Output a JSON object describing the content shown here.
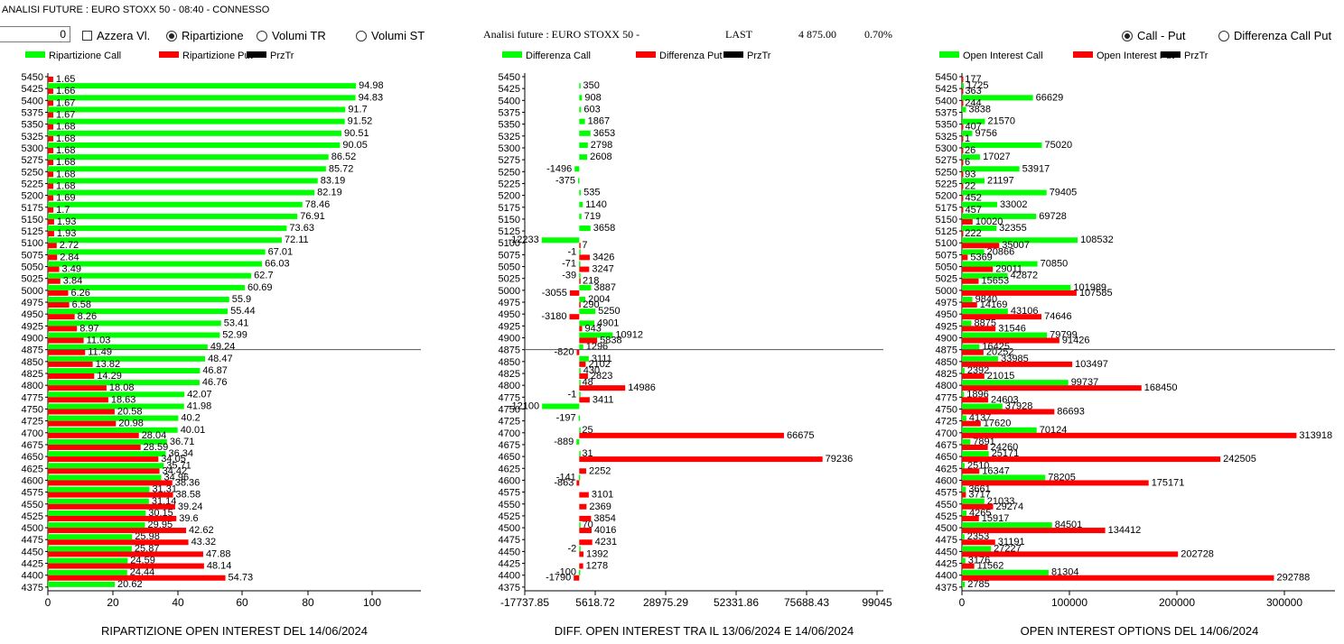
{
  "app_title": "ANALISI FUTURE : EURO STOXX 50 - 08:40 - CONNESSO",
  "controls": {
    "spin_value": "0",
    "azzera": {
      "label": "Azzera Vl.",
      "checked": false
    },
    "view_options": [
      {
        "label": "Ripartizione",
        "selected": true
      },
      {
        "label": "Volumi TR",
        "selected": false
      },
      {
        "label": "Volumi ST",
        "selected": false
      }
    ],
    "mode_options": [
      {
        "label": "Call - Put",
        "selected": true
      },
      {
        "label": "Differenza Call Put",
        "selected": false
      }
    ]
  },
  "header": {
    "title": "Analisi future : EURO STOXX 50 -",
    "last_label": "LAST",
    "last_value": "4 875.00",
    "change": "0.70%"
  },
  "colors": {
    "call": "#00ff00",
    "put": "#ff0000",
    "przTr": "#000000",
    "reference_line": "#555555"
  },
  "chart_data": [
    {
      "type": "bar",
      "orientation": "horizontal",
      "title": "RIPARTIZIONE OPEN INTEREST DEL 14/06/2024",
      "legend": [
        "Ripartizione Call",
        "Ripartizione Put",
        "PrzTr"
      ],
      "legend_placement": "top-left",
      "x_ticks": [
        "0",
        "20",
        "40",
        "60",
        "80",
        "100"
      ],
      "xlim": [
        0,
        115
      ],
      "reference_strike": "4875",
      "strikes": [
        "5450",
        "5425",
        "5400",
        "5375",
        "5350",
        "5325",
        "5300",
        "5275",
        "5250",
        "5225",
        "5200",
        "5175",
        "5150",
        "5125",
        "5100",
        "5075",
        "5050",
        "5025",
        "5000",
        "4975",
        "4950",
        "4925",
        "4900",
        "4875",
        "4850",
        "4825",
        "4800",
        "4775",
        "4750",
        "4725",
        "4700",
        "4675",
        "4650",
        "4625",
        "4600",
        "4575",
        "4550",
        "4525",
        "4500",
        "4475",
        "4450",
        "4425",
        "4400",
        "4375"
      ],
      "series": [
        {
          "name": "Ripartizione Call",
          "values": [
            null,
            94.98,
            94.83,
            91.7,
            91.52,
            90.51,
            90.05,
            86.52,
            85.72,
            83.19,
            82.19,
            78.46,
            76.91,
            73.63,
            72.11,
            67.01,
            66.03,
            62.7,
            60.69,
            55.9,
            55.44,
            53.41,
            52.99,
            49.24,
            48.47,
            46.87,
            46.76,
            42.07,
            41.98,
            40.2,
            40.01,
            36.71,
            36.34,
            35.71,
            34.96,
            31.31,
            31.14,
            30.15,
            29.95,
            25.98,
            25.87,
            24.59,
            24.44,
            20.62
          ]
        },
        {
          "name": "Ripartizione Put",
          "values": [
            1.65,
            1.66,
            1.67,
            1.67,
            1.68,
            1.68,
            1.68,
            1.68,
            1.68,
            1.68,
            1.69,
            1.7,
            1.93,
            1.93,
            2.72,
            2.84,
            3.49,
            3.84,
            6.26,
            6.58,
            8.26,
            8.97,
            11.03,
            11.49,
            13.82,
            14.29,
            18.08,
            18.63,
            20.58,
            20.98,
            28.04,
            28.59,
            34.05,
            34.42,
            38.36,
            38.58,
            39.24,
            39.6,
            42.62,
            43.32,
            47.88,
            48.14,
            54.73,
            null
          ]
        }
      ]
    },
    {
      "type": "bar",
      "orientation": "horizontal",
      "title": "DIFF. OPEN INTEREST TRA IL 13/06/2024 E 14/06/2024",
      "legend": [
        "Differenza Call",
        "Differenza Put",
        "PrzTr"
      ],
      "legend_placement": "top-left",
      "x_ticks": [
        "-17737.85",
        "5618.72",
        "28975.29",
        "52331.86",
        "75688.43",
        "99045"
      ],
      "xlim": [
        -17737.85,
        99045
      ],
      "reference_strike": "4875",
      "strikes": [
        "5450",
        "5425",
        "5400",
        "5375",
        "5350",
        "5325",
        "5300",
        "5275",
        "5250",
        "5225",
        "5200",
        "5175",
        "5150",
        "5125",
        "5100",
        "5075",
        "5050",
        "5025",
        "5000",
        "4975",
        "4950",
        "4925",
        "4900",
        "4875",
        "4850",
        "4825",
        "4800",
        "4775",
        "4750",
        "4725",
        "4700",
        "4675",
        "4650",
        "4625",
        "4600",
        "4575",
        "4550",
        "4525",
        "4500",
        "4475",
        "4450",
        "4425",
        "4400",
        "4375"
      ],
      "series": [
        {
          "name": "Differenza Call",
          "values": [
            null,
            350,
            908,
            603,
            1867,
            3653,
            2798,
            2608,
            -1496,
            -375,
            535,
            1140,
            719,
            3658,
            -12233,
            -1,
            -71,
            -39,
            3887,
            2004,
            5250,
            4901,
            10912,
            1296,
            3111,
            430,
            48,
            -1,
            -12100,
            -197,
            25,
            -889,
            31,
            null,
            -141,
            null,
            null,
            null,
            70,
            null,
            -2,
            null,
            -100,
            null
          ]
        },
        {
          "name": "Differenza Put",
          "values": [
            null,
            null,
            null,
            null,
            null,
            null,
            null,
            null,
            null,
            null,
            null,
            null,
            null,
            null,
            7,
            3426,
            3247,
            218,
            -3055,
            290,
            -3180,
            943,
            5838,
            -820,
            2102,
            2823,
            14986,
            3411,
            null,
            null,
            66675,
            null,
            79236,
            2252,
            -863,
            3101,
            2369,
            3854,
            4016,
            4231,
            1392,
            1278,
            -1790,
            null
          ]
        }
      ]
    },
    {
      "type": "bar",
      "orientation": "horizontal",
      "title": "OPEN INTEREST OPTIONS DEL 14/06/2024",
      "legend": [
        "Open Interest Call",
        "Open Interest Put",
        "PrzTr"
      ],
      "legend_placement": "top-left",
      "x_ticks": [
        "0",
        "100000",
        "200000",
        "300000"
      ],
      "xlim": [
        0,
        350000
      ],
      "reference_strike": "4875",
      "strikes": [
        "5450",
        "5425",
        "5400",
        "5375",
        "5350",
        "5325",
        "5300",
        "5275",
        "5250",
        "5225",
        "5200",
        "5175",
        "5150",
        "5125",
        "5100",
        "5075",
        "5050",
        "5025",
        "5000",
        "4975",
        "4950",
        "4925",
        "4900",
        "4875",
        "4850",
        "4825",
        "4800",
        "4775",
        "4750",
        "4725",
        "4700",
        "4675",
        "4650",
        "4625",
        "4600",
        "4575",
        "4550",
        "4525",
        "4500",
        "4475",
        "4450",
        "4425",
        "4400",
        "4375"
      ],
      "series": [
        {
          "name": "Open Interest Call",
          "values": [
            null,
            1725,
            66629,
            3838,
            21570,
            9756,
            75020,
            17027,
            53917,
            21197,
            79405,
            33002,
            69728,
            32355,
            108532,
            20866,
            70850,
            42872,
            101989,
            9840,
            43106,
            8875,
            79799,
            16425,
            33985,
            2392,
            99737,
            1896,
            37928,
            4137,
            70124,
            7891,
            25171,
            2510,
            78205,
            3661,
            21033,
            4265,
            84501,
            2353,
            27227,
            3176,
            81304,
            2785
          ]
        },
        {
          "name": "Open Interest Put",
          "values": [
            177,
            363,
            244,
            null,
            407,
            1,
            26,
            6,
            93,
            22,
            452,
            457,
            10020,
            222,
            35007,
            5369,
            29011,
            15653,
            107585,
            14169,
            74646,
            31546,
            91426,
            20252,
            103497,
            21015,
            168450,
            24603,
            86693,
            17620,
            313918,
            24260,
            242505,
            16347,
            175171,
            3717,
            29274,
            15917,
            134412,
            31191,
            202728,
            11562,
            292788,
            null
          ]
        }
      ]
    }
  ]
}
